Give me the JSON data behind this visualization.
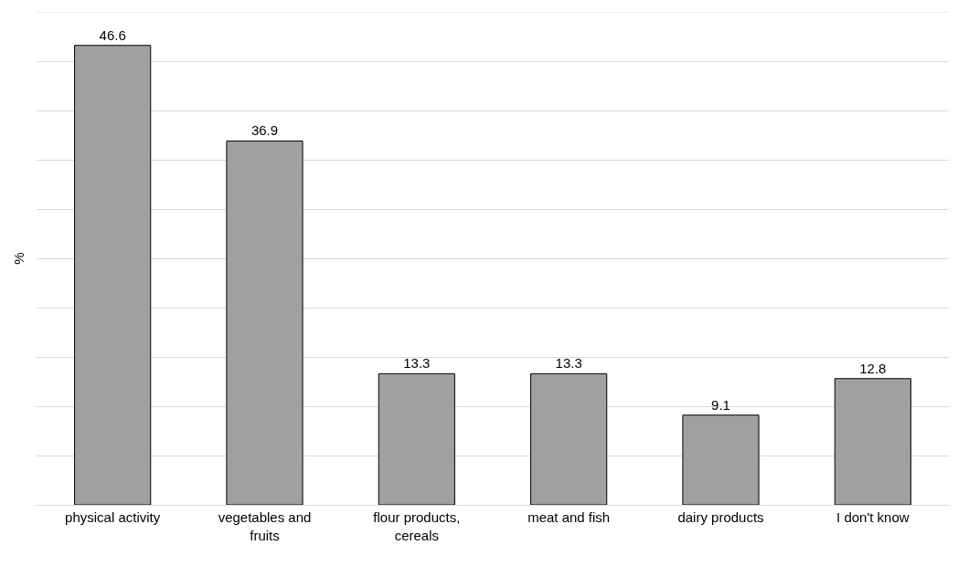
{
  "chart_data": {
    "type": "bar",
    "ylabel": "%",
    "categories": [
      "physical activity",
      "vegetables and fruits",
      "flour products, cereals",
      "meat and fish",
      "dairy products",
      "I don't know"
    ],
    "values": [
      46.6,
      36.9,
      13.3,
      13.3,
      9.1,
      12.8
    ],
    "color": "#a0a0a0",
    "data_labels": true,
    "ylim": [
      0,
      50
    ],
    "yticks": [
      {
        "value": 0,
        "label": null
      },
      {
        "value": 5,
        "label": null
      },
      {
        "value": 10,
        "label": null
      },
      {
        "value": 15,
        "label": null
      },
      {
        "value": 20,
        "label": null
      },
      {
        "value": 25,
        "label": null
      },
      {
        "value": 30,
        "label": null
      },
      {
        "value": 35,
        "label": null
      },
      {
        "value": 40,
        "label": null
      },
      {
        "value": 45,
        "label": null
      },
      {
        "value": 50,
        "label": null
      }
    ],
    "tick_labels": "x",
    "grid": "y"
  }
}
